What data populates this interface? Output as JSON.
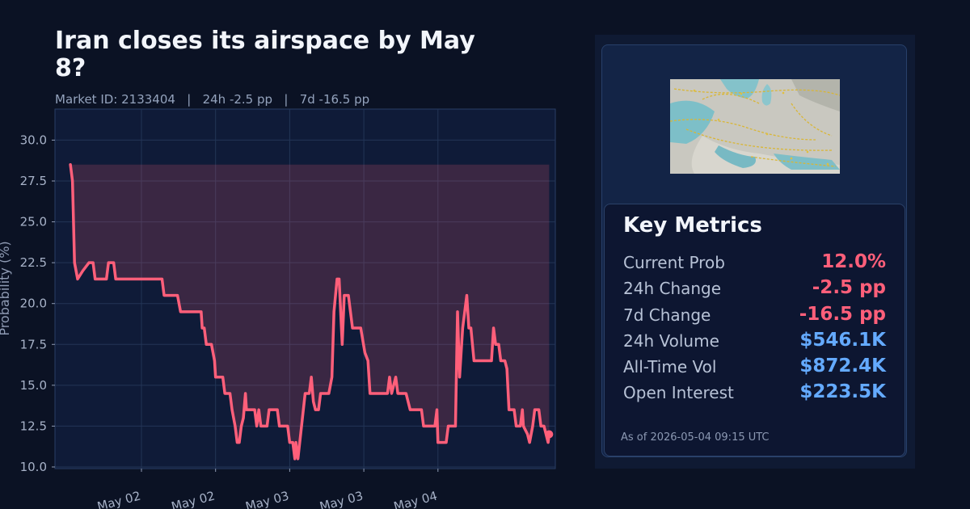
{
  "header": {
    "title": "Iran closes its airspace by May 8?",
    "subtitle": "Market ID: 2133404   |   24h -2.5 pp   |   7d -16.5 pp"
  },
  "colors": {
    "line": "#ff5f7a",
    "fill": "rgba(255,95,122,0.18)",
    "negative": "#ff5f7a",
    "positive": "#64aaff",
    "grid": "#233556"
  },
  "chart_data": {
    "type": "line",
    "title": "",
    "xlabel": "",
    "ylabel": "Probability (%)",
    "ylim": [
      9.9,
      31.9
    ],
    "yticks": [
      10.0,
      12.5,
      15.0,
      17.5,
      20.0,
      22.5,
      25.0,
      27.5,
      30.0
    ],
    "xlim": [
      "2026-05-01 10:00",
      "2026-05-04 19:00"
    ],
    "xticks": [
      {
        "t": "2026-05-02 00:00",
        "label": "May 02"
      },
      {
        "t": "2026-05-02 12:00",
        "label": "May 02"
      },
      {
        "t": "2026-05-03 00:00",
        "label": "May 03"
      },
      {
        "t": "2026-05-03 12:00",
        "label": "May 03"
      },
      {
        "t": "2026-05-04 00:00",
        "label": "May 04"
      }
    ],
    "grid": true,
    "fill_between": {
      "upper": 28.5,
      "to": "series"
    },
    "series": [
      {
        "name": "",
        "points": [
          [
            "2026-05-01 12:30",
            28.5
          ],
          [
            "2026-05-01 12:50",
            27.5
          ],
          [
            "2026-05-01 13:10",
            22.5
          ],
          [
            "2026-05-01 13:40",
            21.5
          ],
          [
            "2026-05-01 14:30",
            22.0
          ],
          [
            "2026-05-01 15:30",
            22.5
          ],
          [
            "2026-05-01 16:10",
            22.5
          ],
          [
            "2026-05-01 16:30",
            21.5
          ],
          [
            "2026-05-01 18:20",
            21.5
          ],
          [
            "2026-05-01 18:40",
            22.5
          ],
          [
            "2026-05-01 19:30",
            22.5
          ],
          [
            "2026-05-01 19:50",
            21.5
          ],
          [
            "2026-05-01 23:20",
            21.5
          ],
          [
            "2026-05-02 00:00",
            21.5
          ],
          [
            "2026-05-02 03:20",
            21.5
          ],
          [
            "2026-05-02 03:40",
            20.5
          ],
          [
            "2026-05-02 05:50",
            20.5
          ],
          [
            "2026-05-02 06:20",
            19.5
          ],
          [
            "2026-05-02 09:40",
            19.5
          ],
          [
            "2026-05-02 09:50",
            18.5
          ],
          [
            "2026-05-02 10:10",
            18.5
          ],
          [
            "2026-05-02 10:30",
            17.5
          ],
          [
            "2026-05-02 11:20",
            17.5
          ],
          [
            "2026-05-02 11:50",
            16.5
          ],
          [
            "2026-05-02 12:00",
            15.5
          ],
          [
            "2026-05-02 13:10",
            15.5
          ],
          [
            "2026-05-02 13:30",
            14.5
          ],
          [
            "2026-05-02 14:20",
            14.5
          ],
          [
            "2026-05-02 14:40",
            13.5
          ],
          [
            "2026-05-02 15:10",
            12.5
          ],
          [
            "2026-05-02 15:30",
            11.5
          ],
          [
            "2026-05-02 15:50",
            11.5
          ],
          [
            "2026-05-02 16:10",
            12.5
          ],
          [
            "2026-05-02 16:30",
            13.0
          ],
          [
            "2026-05-02 16:50",
            14.5
          ],
          [
            "2026-05-02 17:00",
            13.5
          ],
          [
            "2026-05-02 18:20",
            13.5
          ],
          [
            "2026-05-02 18:40",
            12.5
          ],
          [
            "2026-05-02 19:00",
            13.5
          ],
          [
            "2026-05-02 19:20",
            12.5
          ],
          [
            "2026-05-02 20:20",
            12.5
          ],
          [
            "2026-05-02 20:40",
            13.5
          ],
          [
            "2026-05-02 22:00",
            13.5
          ],
          [
            "2026-05-02 22:20",
            12.5
          ],
          [
            "2026-05-02 23:40",
            12.5
          ],
          [
            "2026-05-03 00:00",
            11.5
          ],
          [
            "2026-05-03 00:30",
            11.5
          ],
          [
            "2026-05-03 00:50",
            10.5
          ],
          [
            "2026-05-03 01:00",
            11.5
          ],
          [
            "2026-05-03 01:20",
            10.5
          ],
          [
            "2026-05-03 02:30",
            14.5
          ],
          [
            "2026-05-03 03:10",
            14.5
          ],
          [
            "2026-05-03 03:30",
            15.5
          ],
          [
            "2026-05-03 03:50",
            14.0
          ],
          [
            "2026-05-03 04:10",
            13.5
          ],
          [
            "2026-05-03 04:40",
            13.5
          ],
          [
            "2026-05-03 05:00",
            14.5
          ],
          [
            "2026-05-03 06:20",
            14.5
          ],
          [
            "2026-05-03 06:50",
            15.5
          ],
          [
            "2026-05-03 07:10",
            19.5
          ],
          [
            "2026-05-03 07:40",
            21.5
          ],
          [
            "2026-05-03 08:00",
            21.5
          ],
          [
            "2026-05-03 08:30",
            17.5
          ],
          [
            "2026-05-03 08:50",
            20.5
          ],
          [
            "2026-05-03 09:30",
            20.5
          ],
          [
            "2026-05-03 10:10",
            18.5
          ],
          [
            "2026-05-03 11:30",
            18.5
          ],
          [
            "2026-05-03 12:10",
            17.0
          ],
          [
            "2026-05-03 12:40",
            16.5
          ],
          [
            "2026-05-03 13:00",
            14.5
          ],
          [
            "2026-05-03 15:50",
            14.5
          ],
          [
            "2026-05-03 16:10",
            15.5
          ],
          [
            "2026-05-03 16:30",
            14.5
          ],
          [
            "2026-05-03 17:10",
            15.5
          ],
          [
            "2026-05-03 17:30",
            14.5
          ],
          [
            "2026-05-03 18:50",
            14.5
          ],
          [
            "2026-05-03 19:30",
            13.5
          ],
          [
            "2026-05-03 21:20",
            13.5
          ],
          [
            "2026-05-03 21:40",
            12.5
          ],
          [
            "2026-05-03 23:30",
            12.5
          ],
          [
            "2026-05-03 23:50",
            13.5
          ],
          [
            "2026-05-04 00:00",
            11.5
          ],
          [
            "2026-05-04 01:20",
            11.5
          ],
          [
            "2026-05-04 01:40",
            12.5
          ],
          [
            "2026-05-04 02:50",
            12.5
          ],
          [
            "2026-05-04 03:10",
            19.5
          ],
          [
            "2026-05-04 03:30",
            15.5
          ],
          [
            "2026-05-04 04:00",
            18.5
          ],
          [
            "2026-05-04 04:40",
            20.5
          ],
          [
            "2026-05-04 05:00",
            18.5
          ],
          [
            "2026-05-04 05:20",
            18.5
          ],
          [
            "2026-05-04 05:50",
            16.5
          ],
          [
            "2026-05-04 07:20",
            16.5
          ],
          [
            "2026-05-04 08:40",
            16.5
          ],
          [
            "2026-05-04 09:00",
            18.5
          ],
          [
            "2026-05-04 09:20",
            17.5
          ],
          [
            "2026-05-04 09:50",
            17.5
          ],
          [
            "2026-05-04 10:10",
            16.5
          ],
          [
            "2026-05-04 10:50",
            16.5
          ],
          [
            "2026-05-04 11:10",
            16.0
          ],
          [
            "2026-05-04 11:30",
            13.5
          ],
          [
            "2026-05-04 12:20",
            13.5
          ],
          [
            "2026-05-04 12:40",
            12.5
          ],
          [
            "2026-05-04 13:20",
            12.5
          ],
          [
            "2026-05-04 13:40",
            13.5
          ],
          [
            "2026-05-04 13:50",
            12.5
          ],
          [
            "2026-05-04 14:30",
            12.0
          ],
          [
            "2026-05-04 14:50",
            11.5
          ],
          [
            "2026-05-04 15:20",
            12.5
          ],
          [
            "2026-05-04 15:40",
            13.5
          ],
          [
            "2026-05-04 16:20",
            13.5
          ],
          [
            "2026-05-04 16:40",
            12.5
          ],
          [
            "2026-05-04 17:10",
            12.5
          ],
          [
            "2026-05-04 17:30",
            12.0
          ],
          [
            "2026-05-04 17:50",
            11.5
          ],
          [
            "2026-05-04 18:00",
            12.0
          ]
        ]
      }
    ]
  },
  "metrics": {
    "title": "Key Metrics",
    "rows": [
      {
        "label": "Current Prob",
        "value": "12.0%",
        "tone": "neg"
      },
      {
        "label": "24h Change",
        "value": "-2.5 pp",
        "tone": "neg"
      },
      {
        "label": "7d Change",
        "value": "-16.5 pp",
        "tone": "neg"
      },
      {
        "label": "24h Volume",
        "value": "$546.1K",
        "tone": "pos"
      },
      {
        "label": "All-Time Vol",
        "value": "$872.4K",
        "tone": "pos"
      },
      {
        "label": "Open Interest",
        "value": "$223.5K",
        "tone": "pos"
      }
    ],
    "as_of": "As of 2026-05-04 09:15 UTC"
  },
  "map": {
    "icon": "airspace-map-thumbnail"
  }
}
